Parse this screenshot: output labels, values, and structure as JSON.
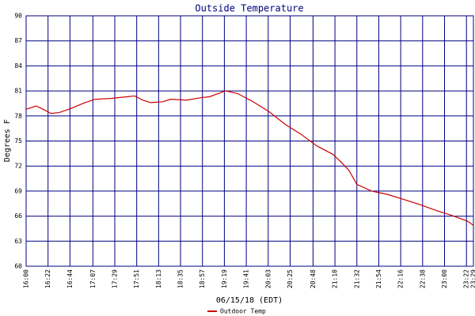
{
  "chart_data": {
    "type": "line",
    "title": "Outside Temperature",
    "xlabel": "06/15/18 (EDT)",
    "ylabel": "Degrees F",
    "xlim": [
      960,
      1409
    ],
    "xticks": [
      {
        "value": 960,
        "label": "16:00"
      },
      {
        "value": 982,
        "label": "16:22"
      },
      {
        "value": 1004,
        "label": "16:44"
      },
      {
        "value": 1027,
        "label": "17:07"
      },
      {
        "value": 1049,
        "label": "17:29"
      },
      {
        "value": 1071,
        "label": "17:51"
      },
      {
        "value": 1093,
        "label": "18:13"
      },
      {
        "value": 1115,
        "label": "18:35"
      },
      {
        "value": 1137,
        "label": "18:57"
      },
      {
        "value": 1159,
        "label": "19:19"
      },
      {
        "value": 1181,
        "label": "19:41"
      },
      {
        "value": 1203,
        "label": "20:03"
      },
      {
        "value": 1225,
        "label": "20:25"
      },
      {
        "value": 1248,
        "label": "20:48"
      },
      {
        "value": 1270,
        "label": "21:10"
      },
      {
        "value": 1292,
        "label": "21:32"
      },
      {
        "value": 1314,
        "label": "21:54"
      },
      {
        "value": 1336,
        "label": "22:16"
      },
      {
        "value": 1358,
        "label": "22:38"
      },
      {
        "value": 1380,
        "label": "23:00"
      },
      {
        "value": 1402,
        "label": "23:22"
      },
      {
        "value": 1409,
        "label": "23:29"
      }
    ],
    "ylim": [
      60,
      90
    ],
    "yticks": [
      60,
      63,
      66,
      69,
      72,
      75,
      78,
      81,
      84,
      87,
      90
    ],
    "grid": true,
    "legend": "bottom",
    "x": [
      960,
      970,
      977,
      985,
      993,
      1005,
      1017,
      1029,
      1045,
      1061,
      1069,
      1077,
      1085,
      1097,
      1105,
      1121,
      1136,
      1144,
      1160,
      1172,
      1188,
      1204,
      1220,
      1236,
      1252,
      1268,
      1276,
      1284,
      1292,
      1307,
      1323,
      1339,
      1355,
      1371,
      1387,
      1403,
      1409
    ],
    "series": [
      {
        "name": "Outdoor Temp",
        "color": "#cc0000",
        "values": [
          78.8,
          79.2,
          78.8,
          78.3,
          78.4,
          78.9,
          79.5,
          80.0,
          80.1,
          80.3,
          80.4,
          79.9,
          79.6,
          79.7,
          80.0,
          79.9,
          80.2,
          80.3,
          81.0,
          80.7,
          79.7,
          78.5,
          77.0,
          75.8,
          74.4,
          73.4,
          72.5,
          71.5,
          69.8,
          69.0,
          68.6,
          68.0,
          67.4,
          66.7,
          66.1,
          65.4,
          64.9
        ]
      }
    ]
  }
}
